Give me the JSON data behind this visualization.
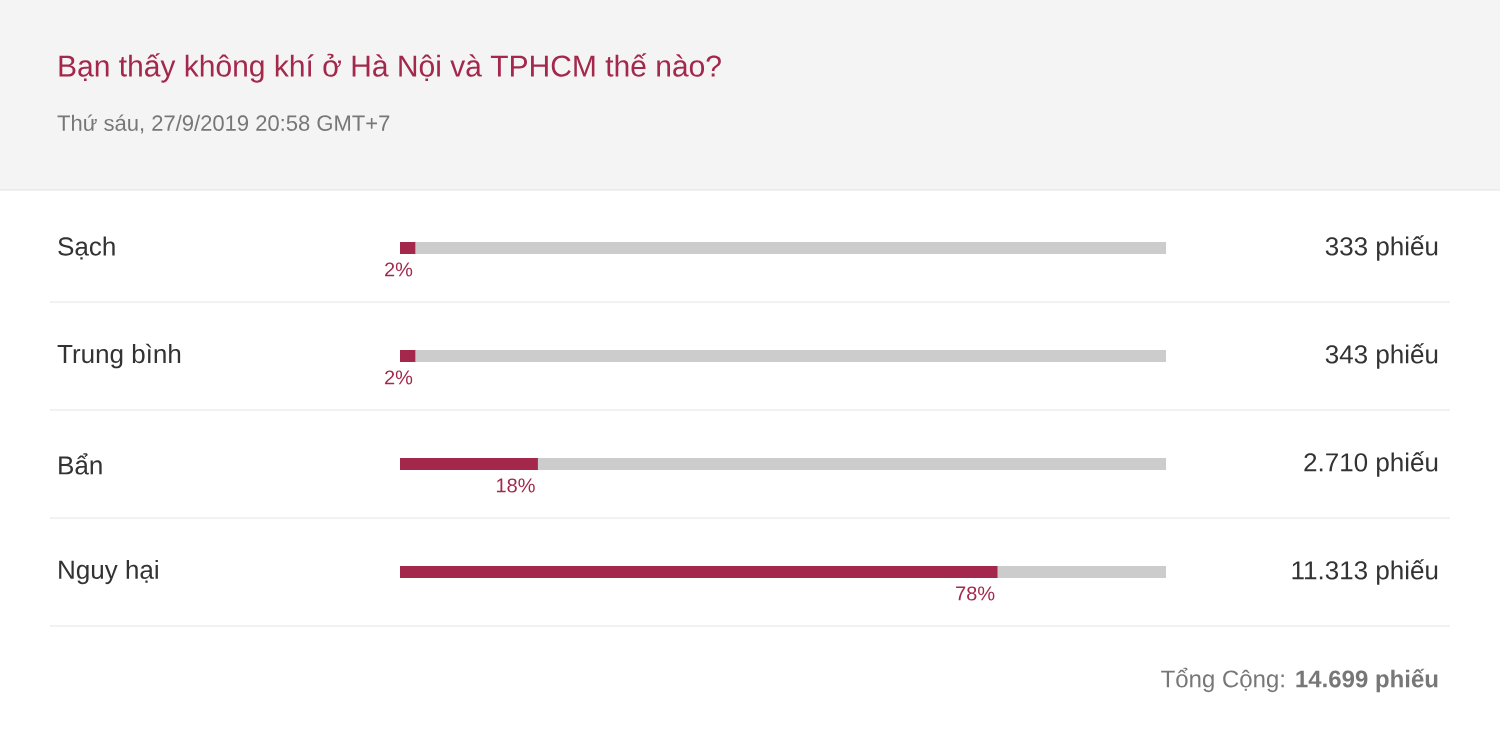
{
  "chart_data": {
    "type": "bar",
    "orientation": "horizontal",
    "title": "Bạn thấy không khí ở Hà Nội và TPHCM thế nào?",
    "subtitle": "Thứ sáu, 27/9/2019 20:58 GMT+7",
    "categories": [
      "Sạch",
      "Trung bình",
      "Bẩn",
      "Nguy hại"
    ],
    "values": [
      2,
      2,
      18,
      78
    ],
    "value_labels": [
      "2%",
      "2%",
      "18%",
      "78%"
    ],
    "color": "#a3284b",
    "xlim": [
      0,
      100
    ],
    "annotations": [
      "333 phiếu",
      "343 phiếu",
      "2.710 phiếu",
      "11.313 phiếu",
      "Tổng Cộng: **14.699 phiếu**"
    ]
  }
}
